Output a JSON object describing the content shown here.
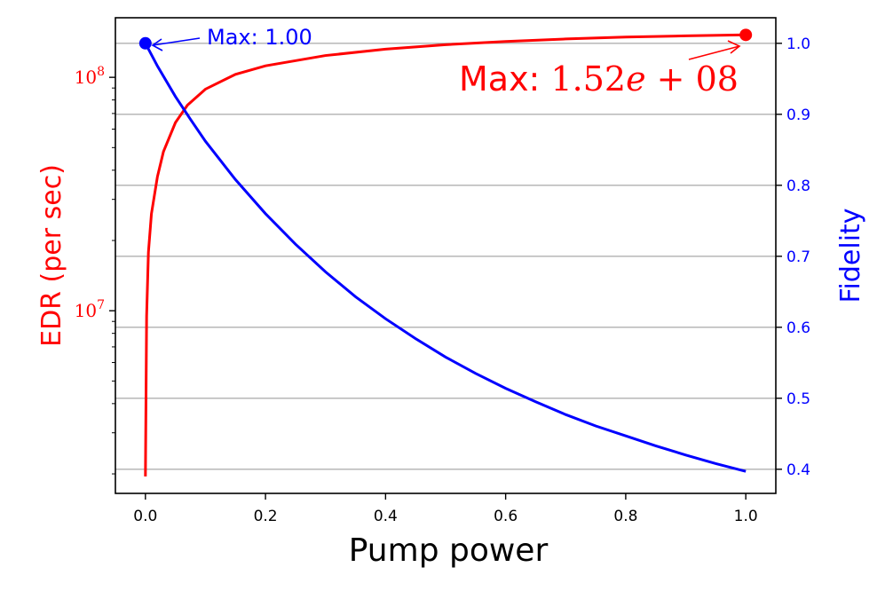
{
  "chart_data": {
    "type": "line",
    "xlabel": "Pump power",
    "ylabel_left": "EDR (per sec)",
    "ylabel_right": "Fidelity",
    "xlim": [
      -0.05,
      1.05
    ],
    "x_ticks": [
      0.0,
      0.2,
      0.4,
      0.6,
      0.8,
      1.0
    ],
    "x_tick_labels": [
      "0.0",
      "0.2",
      "0.4",
      "0.6",
      "0.8",
      "1.0"
    ],
    "left_axis": {
      "scale": "log",
      "ylim": [
        1650000,
        180000000
      ],
      "major_ticks": [
        10000000,
        100000000
      ],
      "major_tick_labels": [
        {
          "base": "10",
          "exp": "7"
        },
        {
          "base": "10",
          "exp": "8"
        }
      ],
      "minor_ticks": [
        2000000,
        3000000,
        4000000,
        5000000,
        6000000,
        7000000,
        8000000,
        9000000,
        20000000,
        30000000,
        40000000,
        50000000,
        60000000,
        70000000,
        80000000,
        90000000
      ]
    },
    "right_axis": {
      "scale": "linear",
      "ylim": [
        0.366,
        1.036
      ],
      "ticks": [
        0.4,
        0.5,
        0.6,
        0.7,
        0.8,
        0.9,
        1.0
      ],
      "tick_labels": [
        "0.4",
        "0.5",
        "0.6",
        "0.7",
        "0.8",
        "0.9",
        "1.0"
      ],
      "grid": true
    },
    "series": [
      {
        "name": "EDR",
        "axis": "left",
        "color": "#ff0000",
        "x": [
          0.0,
          0.002,
          0.005,
          0.01,
          0.02,
          0.03,
          0.05,
          0.07,
          0.1,
          0.15,
          0.2,
          0.3,
          0.4,
          0.5,
          0.6,
          0.7,
          0.8,
          0.9,
          1.0
        ],
        "y": [
          1950000,
          9500000,
          17800000,
          26000000,
          37500000,
          48000000,
          64000000,
          76000000,
          89000000,
          103000000,
          112000000,
          124000000,
          132000000,
          138000000,
          142500000,
          146000000,
          148800000,
          150600000,
          152000000
        ]
      },
      {
        "name": "Fidelity",
        "axis": "right",
        "color": "#0000ff",
        "x": [
          0.0,
          0.02,
          0.05,
          0.075,
          0.1,
          0.15,
          0.2,
          0.25,
          0.3,
          0.35,
          0.4,
          0.45,
          0.5,
          0.55,
          0.6,
          0.65,
          0.7,
          0.75,
          0.8,
          0.85,
          0.9,
          0.95,
          1.0
        ],
        "y": [
          1.0,
          0.968,
          0.925,
          0.893,
          0.862,
          0.808,
          0.76,
          0.717,
          0.678,
          0.643,
          0.612,
          0.584,
          0.558,
          0.535,
          0.514,
          0.495,
          0.477,
          0.461,
          0.447,
          0.433,
          0.42,
          0.408,
          0.397
        ]
      }
    ],
    "annotations": [
      {
        "name": "EDR max",
        "text_prefix": "Max: ",
        "text_value": "1.52",
        "text_var": "e",
        "text_op": " + ",
        "text_exp": "08",
        "color": "#ff0000",
        "point": [
          1.0,
          152000000
        ],
        "axis": "left"
      },
      {
        "name": "Fidelity max",
        "text": "Max: 1.00",
        "color": "#0000ff",
        "point": [
          0.0,
          1.0
        ],
        "axis": "right"
      }
    ]
  }
}
